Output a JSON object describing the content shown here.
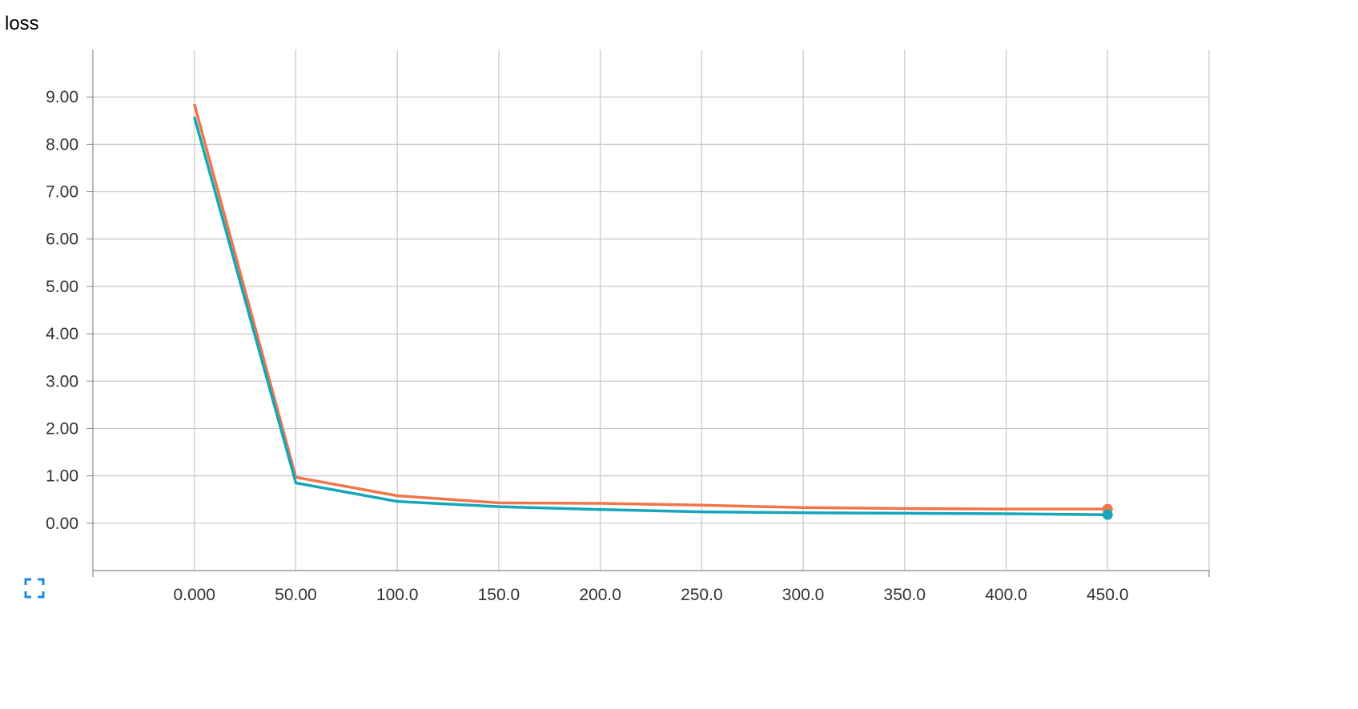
{
  "title": "loss",
  "expand_icon_color": "#1e88e5",
  "chart_data": {
    "type": "line",
    "title": "loss",
    "xlabel": "",
    "ylabel": "",
    "xlim": [
      -50,
      500
    ],
    "ylim": [
      -1,
      10
    ],
    "x_ticks": [
      0,
      50,
      100,
      150,
      200,
      250,
      300,
      350,
      400,
      450
    ],
    "x_tick_labels": [
      "0.000",
      "50.00",
      "100.0",
      "150.0",
      "200.0",
      "250.0",
      "300.0",
      "350.0",
      "400.0",
      "450.0"
    ],
    "y_ticks": [
      0,
      1,
      2,
      3,
      4,
      5,
      6,
      7,
      8,
      9
    ],
    "y_tick_labels": [
      "0.00",
      "1.00",
      "2.00",
      "3.00",
      "4.00",
      "5.00",
      "6.00",
      "7.00",
      "8.00",
      "9.00"
    ],
    "grid": true,
    "series": [
      {
        "color": "#f0764a",
        "x": [
          0,
          50,
          100,
          150,
          200,
          250,
          300,
          350,
          400,
          450
        ],
        "values": [
          8.85,
          0.97,
          0.58,
          0.43,
          0.42,
          0.38,
          0.33,
          0.31,
          0.3,
          0.3
        ]
      },
      {
        "color": "#14a6ba",
        "x": [
          0,
          50,
          100,
          150,
          200,
          250,
          300,
          350,
          400,
          450
        ],
        "values": [
          8.58,
          0.85,
          0.46,
          0.35,
          0.29,
          0.24,
          0.22,
          0.21,
          0.2,
          0.18
        ]
      }
    ]
  }
}
